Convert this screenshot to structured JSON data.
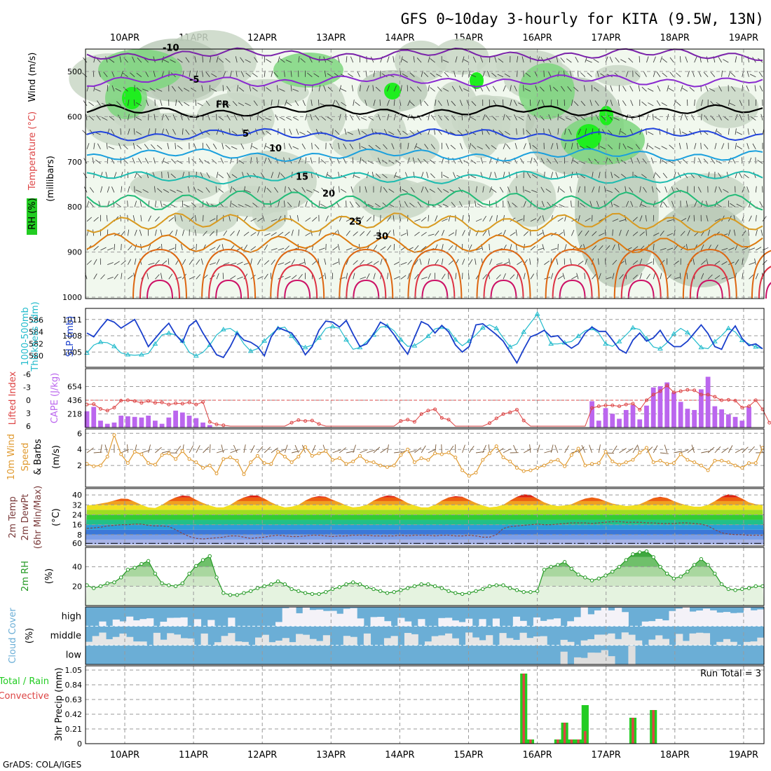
{
  "title": "GFS 0~10day 3-hourly for KITA (9.5W, 13N)",
  "credit": "GrADS: COLA/IGES",
  "run_total_label": "Run Total = 3",
  "dates": [
    "10APR",
    "11APR",
    "12APR",
    "13APR",
    "14APR",
    "15APR",
    "16APR",
    "17APR",
    "18APR",
    "19APR"
  ],
  "colors": {
    "rh_green": "#22cc22",
    "temp_line": "#e0a020",
    "slp": "#1a3fcc",
    "thickness": "#22bbcc",
    "cape": "#bb66ee",
    "lifted": "#dd4444",
    "wind": "#e09a30",
    "rh2m": "#229922",
    "cloud": "#6baed6",
    "rain": "#22cc22",
    "convective": "#dd4444"
  },
  "panels_text": {
    "upper_wind": "Wind (m/s)",
    "upper_temp": "Temperature (°C)",
    "upper_rh": "RH (%)",
    "upper_press": "(millibars)",
    "thk": "1000-500mb",
    "thk2": "Thickness (dm)",
    "slp": "SLP (mb)",
    "li": "Lifted Index",
    "cape": "CAPE (J/kg)",
    "w10a": "10m Wind",
    "w10b": "Speed",
    "w10c": "& Barbs",
    "w10u": "(m/s)",
    "t2a": "2m Temp",
    "t2b": "2m DewPt",
    "t2c": "(6hr Min/Max)",
    "t2u": "(°C)",
    "rh2a": "2m RH",
    "rh2u": "(%)",
    "cca": "Cloud Cover",
    "ccu": "(%)",
    "ppa": "Total / Rain",
    "ppb": "Convective",
    "ppc": "3hr Precip (mm)"
  },
  "chart_data": [
    {
      "type": "contour",
      "name": "upper-air",
      "ylabel": "(millibars)",
      "y_ticks": [
        500,
        600,
        700,
        800,
        900,
        1000
      ],
      "ylim": [
        1000,
        450
      ],
      "temperature_contours": [
        {
          "label": "-10",
          "p": 462
        },
        {
          "label": "-5",
          "p": 520
        },
        {
          "label": "FR",
          "p": 588
        },
        {
          "label": "5",
          "p": 640
        },
        {
          "label": "10",
          "p": 685
        },
        {
          "label": "15",
          "p": 735
        },
        {
          "label": "20",
          "p": 785
        },
        {
          "label": "25",
          "p": 835
        },
        {
          "label": "30",
          "p": 880
        }
      ],
      "rh_levels": [
        "30",
        "50"
      ]
    },
    {
      "type": "line",
      "name": "slp-thickness",
      "series": [
        {
          "name": "SLP (mb)",
          "axis": "right",
          "ticks": [
            1005,
            1008,
            1011
          ],
          "values": [
            1008.5,
            1007.8,
            1009.5,
            1011,
            1010.5,
            1009.4,
            1010.2,
            1011,
            1008.6,
            1006,
            1007.5,
            1009,
            1010.3,
            1008.2,
            1006.8,
            1009.8,
            1010.8,
            1008.5,
            1006.5,
            1004.5,
            1004,
            1006,
            1008.5,
            1007.2,
            1006.8,
            1006,
            1004.3,
            1007.8,
            1009.5,
            1009,
            1008.5,
            1006.8,
            1004.5,
            1006,
            1009,
            1010.7,
            1010.5,
            1009.6,
            1010.8,
            1008.3,
            1006,
            1006.5,
            1008.3,
            1010.5,
            1009.8,
            1008.2,
            1006.3,
            1004.6,
            1007.7,
            1010.6,
            1010,
            1008.5,
            1009.9,
            1008.7,
            1006.3,
            1005,
            1006,
            1010,
            1010.2,
            1009.2,
            1008.2,
            1007,
            1005,
            1003,
            1005.5,
            1007.8,
            1008.3,
            1009,
            1007.8,
            1008,
            1006.6,
            1005.7,
            1006.5,
            1008.5,
            1009.6,
            1008.8,
            1008.8,
            1007.2,
            1005.5,
            1004.8,
            1007.2,
            1008.5,
            1007,
            1007.6,
            1009,
            1007,
            1006,
            1006,
            1007,
            1008.5,
            1010,
            1008.4,
            1006,
            1005.5,
            1008.2,
            1009.8,
            1007.5,
            1006.2,
            1006.5,
            1005.6
          ]
        },
        {
          "name": "1000-500mb Thickness (dm)",
          "axis": "left",
          "ticks": [
            580,
            582,
            584,
            586
          ],
          "values": [
            580.5,
            581.8,
            582.3,
            582.2,
            581.6,
            580.5,
            580.2,
            580.1,
            580.2,
            580.4,
            582,
            583.5,
            583.8,
            583.5,
            582.5,
            580.6,
            580,
            580.6,
            581.8,
            583.5,
            584.4,
            584.6,
            583.8,
            582,
            580.8,
            581.2,
            582.5,
            583.6,
            584.6,
            584.8,
            583.3,
            581.9,
            581.4,
            581.8,
            583,
            584.6,
            584.9,
            584.6,
            582.7,
            581.1,
            581.4,
            582.4,
            583.5,
            584.8,
            585,
            584.2,
            582.7,
            581.6,
            581.7,
            582.4,
            583.3,
            584.5,
            584.8,
            584.4,
            582.7,
            581.7,
            582.5,
            583.5,
            584.7,
            585.2,
            584.6,
            583,
            581.5,
            582,
            584,
            585.5,
            587,
            584.5,
            582,
            582,
            582.2,
            582.4,
            583.3,
            584.2,
            584.6,
            583.8,
            582,
            581.6,
            582.4,
            583.5,
            584.7,
            584.4,
            582.9,
            581.5,
            581.2,
            582.2,
            583.7,
            584.6,
            583.9,
            582.7,
            581.4,
            581.2,
            582.4,
            583.4,
            584.6,
            584,
            582.6,
            582,
            581.5,
            581.2
          ]
        }
      ]
    },
    {
      "type": "bar",
      "name": "cape-lifted-index",
      "cape_ticks": [
        218,
        436,
        654
      ],
      "lifted_ticks": [
        -6,
        -3,
        0,
        3,
        6
      ],
      "cape_values": [
        260,
        330,
        110,
        60,
        80,
        190,
        180,
        170,
        160,
        190,
        110,
        60,
        160,
        270,
        240,
        190,
        150,
        80,
        40,
        0,
        0,
        0,
        0,
        0,
        0,
        0,
        0,
        0,
        0,
        0,
        0,
        0,
        0,
        0,
        0,
        0,
        0,
        0,
        0,
        0,
        0,
        0,
        0,
        0,
        0,
        0,
        0,
        0,
        0,
        0,
        0,
        0,
        0,
        0,
        0,
        0,
        0,
        0,
        0,
        0,
        0,
        0,
        0,
        0,
        0,
        0,
        0,
        0,
        0,
        0,
        0,
        0,
        0,
        0,
        420,
        110,
        310,
        220,
        140,
        280,
        360,
        130,
        350,
        640,
        660,
        720,
        560,
        410,
        300,
        280,
        610,
        810,
        340,
        290,
        210,
        170,
        110,
        330,
        0,
        0
      ],
      "lifted_values": [
        1,
        0.9,
        2,
        2.4,
        1.7,
        0.1,
        0,
        0.2,
        0.6,
        0.2,
        0.6,
        0.5,
        1,
        0.7,
        0.8,
        0.5,
        1,
        0.4,
        5,
        5.6,
        5.8,
        6,
        6,
        6,
        6,
        6,
        6,
        6,
        6,
        6,
        5.2,
        4.6,
        4.8,
        4.7,
        5.5,
        6,
        6,
        6,
        6,
        6,
        6,
        6,
        6,
        6,
        6,
        6,
        4.8,
        4.5,
        5,
        3.2,
        2.4,
        2.1,
        4.1,
        4.5,
        6,
        6,
        6,
        6,
        6,
        5.3,
        4.2,
        3.2,
        2.8,
        2.2,
        4.7,
        6,
        6,
        6,
        6,
        6,
        6,
        6,
        6,
        6,
        1.8,
        1.4,
        1.2,
        1.2,
        1.4,
        1,
        0.8,
        2.2,
        0,
        -1.3,
        -2.1,
        -3.4,
        -1.8,
        -2.1,
        -2.4,
        -2.3,
        -1.3,
        -1.3,
        -0.8,
        0,
        -0.1,
        0.1,
        1.7,
        1.4,
        0,
        2.1,
        5.2
      ]
    },
    {
      "type": "line",
      "name": "10m-wind",
      "ticks": [
        2,
        4,
        6
      ],
      "values": [
        2.2,
        1.9,
        2,
        3.1,
        5.8,
        3.4,
        2.3,
        3.7,
        3.4,
        2.3,
        2.1,
        3.3,
        3.5,
        2.8,
        3.8,
        2.8,
        2.4,
        1.7,
        2,
        1,
        2.8,
        3,
        2.6,
        0.9,
        2.4,
        3.2,
        2.3,
        2.2,
        3.7,
        3.1,
        2.4,
        3.1,
        4.3,
        3.2,
        3.5,
        3.8,
        2.7,
        2.9,
        2.2,
        2.5,
        3.2,
        2.5,
        2.4,
        2,
        1.8,
        2,
        3.3,
        4,
        2.4,
        2.9,
        2.7,
        3.5,
        3.4,
        3.6,
        3,
        1.4,
        0.7,
        1.1,
        2.7,
        3.5,
        4.4,
        3,
        2.5,
        1.7,
        1.3,
        1.4,
        1.7,
        2,
        2.5,
        2.7,
        1.9,
        3.3,
        4.1,
        2,
        2.2,
        2.3,
        3.7,
        2.5,
        2.1,
        2.4,
        2.7,
        3.6,
        4.2,
        2.4,
        2.6,
        2.2,
        2.3,
        3.4,
        2.7,
        2.4,
        2,
        1.4,
        2.6,
        2.6,
        2.4,
        2,
        1.7,
        2.3,
        2.3,
        4.2
      ]
    },
    {
      "type": "area",
      "name": "2m-temp-dewpoint",
      "ticks": [
        8,
        16,
        24,
        32,
        40
      ],
      "ylim": [
        0,
        44
      ],
      "temp": [
        31.5,
        32,
        33,
        34,
        35.5,
        37,
        36.8,
        34.5,
        32,
        30,
        29.5,
        32,
        35.5,
        38,
        39.5,
        39,
        36,
        33.5,
        31.5,
        30,
        30,
        32,
        35.5,
        38,
        39.5,
        39.5,
        37,
        34,
        31.5,
        30,
        30.5,
        32,
        35.5,
        38,
        39,
        38.5,
        36,
        34,
        31.5,
        30,
        30.5,
        32,
        35.5,
        38,
        39.5,
        39,
        36.5,
        33.5,
        31.5,
        30,
        30,
        32,
        35.5,
        38,
        39,
        38.5,
        36,
        33.5,
        31.5,
        30,
        30.5,
        32,
        35.5,
        38.5,
        40.5,
        40,
        37,
        34,
        32,
        31,
        31.5,
        32.5,
        35,
        37,
        38,
        37,
        35,
        33,
        32,
        31,
        31.5,
        32.5,
        35,
        37.5,
        38.5,
        37.5,
        35,
        33,
        31.5,
        30.5,
        30.5,
        32,
        35,
        38.5,
        40.5,
        39.5,
        37,
        34,
        32.5,
        32
      ],
      "dewpoint": [
        13,
        13.5,
        14,
        15,
        15.5,
        16,
        16,
        16.5,
        16.5,
        15.5,
        15,
        15,
        14.5,
        12,
        9,
        6.5,
        5,
        4.5,
        5,
        5.5,
        6,
        7,
        7,
        6,
        5,
        5.5,
        6,
        7,
        7.5,
        7,
        6.5,
        6.5,
        7,
        7.5,
        7.5,
        7,
        6.5,
        7,
        7,
        7.5,
        7.5,
        7.5,
        7,
        7,
        7,
        7,
        7.5,
        7,
        7.5,
        7.5,
        7.5,
        7,
        7.5,
        7.5,
        7,
        7,
        7.5,
        7,
        6,
        6,
        8,
        13,
        14.5,
        15,
        15.5,
        16,
        16.5,
        16,
        16,
        16.5,
        17,
        17.5,
        17.5,
        17.5,
        17,
        17.5,
        18,
        18.5,
        18.5,
        18,
        18,
        18,
        17.5,
        17.5,
        17,
        17,
        17,
        17.5,
        17.5,
        17,
        16.5,
        15,
        12,
        9.5,
        8.5,
        8,
        8,
        7.5,
        7.5,
        7.5
      ]
    },
    {
      "type": "area",
      "name": "2m-rh",
      "ticks": [
        20,
        40
      ],
      "ylim": [
        0,
        60
      ],
      "values": [
        21,
        18,
        20,
        23,
        24,
        29,
        37,
        39,
        43,
        46,
        33,
        23,
        21,
        20,
        23,
        33,
        41,
        47,
        51,
        29,
        13,
        11,
        11,
        13,
        15,
        18,
        20,
        22,
        25,
        22,
        17,
        15,
        13,
        12,
        12,
        14,
        17,
        19,
        22,
        24,
        22,
        19,
        17,
        15,
        13,
        14,
        16,
        18,
        20,
        22,
        22,
        20,
        18,
        15,
        13,
        12,
        13,
        15,
        17,
        20,
        21,
        21,
        18,
        16,
        14,
        14,
        15,
        37,
        40,
        42,
        45,
        38,
        32,
        29,
        26,
        28,
        31,
        35,
        40,
        47,
        53,
        55,
        56,
        50,
        40,
        33,
        28,
        30,
        35,
        42,
        48,
        42,
        33,
        22,
        17,
        16,
        17,
        18,
        20,
        20
      ]
    },
    {
      "type": "heatmap",
      "name": "cloud-cover",
      "levels": [
        "high",
        "middle",
        "low"
      ]
    },
    {
      "type": "bar",
      "name": "3hr-precip",
      "ticks": [
        0,
        0.21,
        0.42,
        0.63,
        0.84,
        1.05
      ],
      "ylim": [
        0,
        1.05
      ],
      "series": [
        {
          "name": "Total / Rain",
          "values": [
            {
              "i": 64,
              "v": 1.0
            },
            {
              "i": 65,
              "v": 0.06
            },
            {
              "i": 69,
              "v": 0.06
            },
            {
              "i": 70,
              "v": 0.3
            },
            {
              "i": 71,
              "v": 0.06
            },
            {
              "i": 72,
              "v": 0.06
            },
            {
              "i": 73,
              "v": 0.55
            },
            {
              "i": 80,
              "v": 0.37
            },
            {
              "i": 83,
              "v": 0.48
            }
          ]
        },
        {
          "name": "Convective",
          "values": [
            {
              "i": 64,
              "v": 1.0
            },
            {
              "i": 65,
              "v": 0.06
            },
            {
              "i": 69,
              "v": 0.06
            },
            {
              "i": 70,
              "v": 0.3
            },
            {
              "i": 71,
              "v": 0.06
            },
            {
              "i": 72,
              "v": 0.06
            },
            {
              "i": 73,
              "v": 0.18
            },
            {
              "i": 80,
              "v": 0.37
            },
            {
              "i": 83,
              "v": 0.48
            }
          ]
        }
      ]
    }
  ]
}
